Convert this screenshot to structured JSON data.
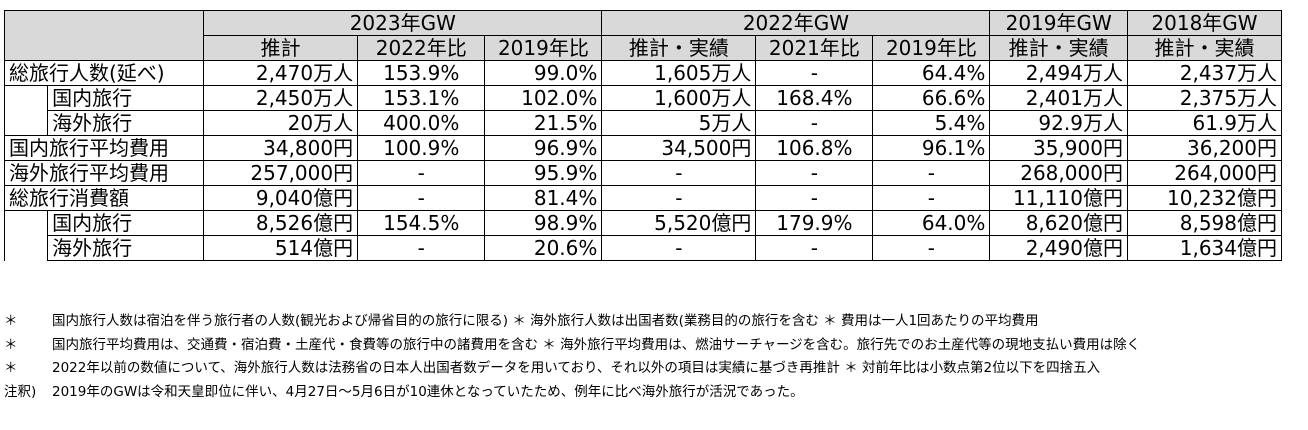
{
  "header": {
    "groups": [
      "2023年GW",
      "2022年GW",
      "2019年GW",
      "2018年GW"
    ],
    "subcols": [
      "推計",
      "2022年比",
      "2019年比",
      "推計・実績",
      "2021年比",
      "2019年比",
      "推計・実績",
      "推計・実績"
    ]
  },
  "rows": [
    {
      "label": "総旅行人数(延べ)",
      "indent": false,
      "cells": [
        "2,470万人",
        "153.9%",
        "99.0%",
        "1,605万人",
        "-",
        "64.4%",
        "2,494万人",
        "2,437万人"
      ]
    },
    {
      "label": "国内旅行",
      "indent": true,
      "cells": [
        "2,450万人",
        "153.1%",
        "102.0%",
        "1,600万人",
        "168.4%",
        "66.6%",
        "2,401万人",
        "2,375万人"
      ]
    },
    {
      "label": "海外旅行",
      "indent": true,
      "cells": [
        "20万人",
        "400.0%",
        "21.5%",
        "5万人",
        "-",
        "5.4%",
        "92.9万人",
        "61.9万人"
      ]
    },
    {
      "label": "国内旅行平均費用",
      "indent": false,
      "cells": [
        "34,800円",
        "100.9%",
        "96.9%",
        "34,500円",
        "106.8%",
        "96.1%",
        "35,900円",
        "36,200円"
      ]
    },
    {
      "label": "海外旅行平均費用",
      "indent": false,
      "cells": [
        "257,000円",
        "-",
        "95.9%",
        "-",
        "-",
        "-",
        "268,000円",
        "264,000円"
      ]
    },
    {
      "label": "総旅行消費額",
      "indent": false,
      "cells": [
        "9,040億円",
        "-",
        "81.4%",
        "-",
        "-",
        "-",
        "11,110億円",
        "10,232億円"
      ]
    },
    {
      "label": "国内旅行",
      "indent": true,
      "cells": [
        "8,526億円",
        "154.5%",
        "98.9%",
        "5,520億円",
        "179.9%",
        "64.0%",
        "8,620億円",
        "8,598億円"
      ]
    },
    {
      "label": "海外旅行",
      "indent": true,
      "cells": [
        "514億円",
        "-",
        "20.6%",
        "-",
        "-",
        "-",
        "2,490億円",
        "1,634億円"
      ]
    }
  ],
  "notes": [
    {
      "mark": "＊",
      "text": "国内旅行人数は宿泊を伴う旅行者の人数(観光および帰省目的の旅行に限る) ＊ 海外旅行人数は出国者数(業務目的の旅行を含む ＊ 費用は一人1回あたりの平均費用"
    },
    {
      "mark": "＊",
      "text": "国内旅行平均費用は、交通費・宿泊費・土産代・食費等の旅行中の諸費用を含む ＊ 海外旅行平均費用は、燃油サーチャージを含む。旅行先でのお土産代等の現地支払い費用は除く"
    },
    {
      "mark": "＊",
      "text": "2022年以前の数値について、海外旅行人数は法務省の日本人出国者数データを用いており、それ以外の項目は実績に基づき再推計 ＊ 対前年比は小数点第2位以下を四捨五入"
    },
    {
      "mark": "注釈)",
      "text": "2019年のGWは令和天皇即位に伴い、4月27日～5月6日が10連休となっていたため、例年に比べ海外旅行が活況であった。"
    }
  ]
}
